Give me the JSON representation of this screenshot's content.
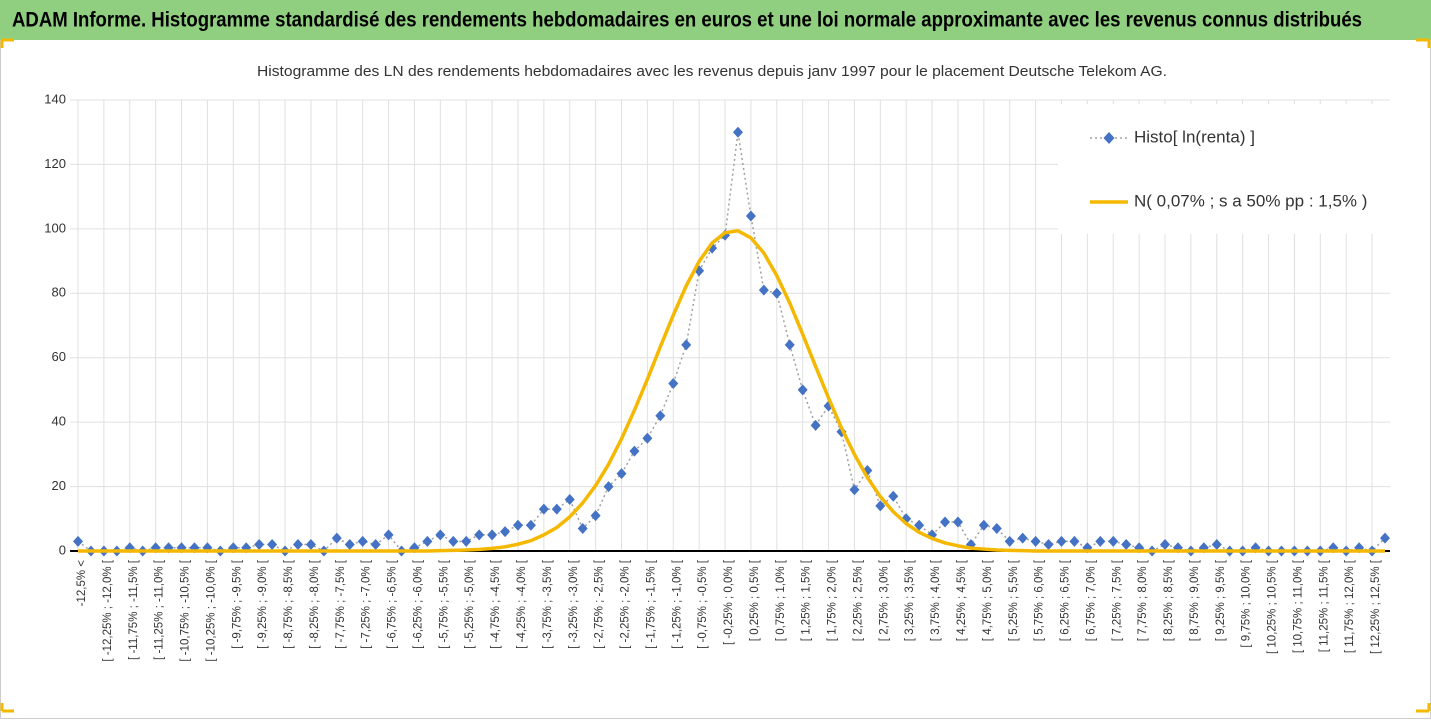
{
  "header": {
    "title": "ADAM Informe. Histogramme standardisé des rendements hebdomadaires en euros et une loi normale approximante avec les revenus connus distribués"
  },
  "chart_data": {
    "type": "line",
    "title": "Histogramme des LN des rendements hebdomadaires avec les revenus depuis janv 1997 pour le placement Deutsche Telekom AG.",
    "categories": [
      "-12,5% <",
      null,
      "[ -12,25% ; -12,0% [",
      null,
      "[ -11,75% ; -11,5% [",
      null,
      "[ -11,25% ; -11,0% [",
      null,
      "[ -10,75% ; -10,5% [",
      null,
      "[ -10,25% ; -10,0% [",
      null,
      "[ -9,75% ; -9,5% [",
      null,
      "[ -9,25% ; -9,0% [",
      null,
      "[ -8,75% ; -8,5% [",
      null,
      "[ -8,25% ; -8,0% [",
      null,
      "[ -7,75% ; -7,5% [",
      null,
      "[ -7,25% ; -7,0% [",
      null,
      "[ -6,75% ; -6,5% [",
      null,
      "[ -6,25% ; -6,0% [",
      null,
      "[ -5,75% ; -5,5% [",
      null,
      "[ -5,25% ; -5,0% [",
      null,
      "[ -4,75% ; -4,5% [",
      null,
      "[ -4,25% ; -4,0% [",
      null,
      "[ -3,75% ; -3,5% [",
      null,
      "[ -3,25% ; -3,0% [",
      null,
      "[ -2,75% ; -2,5% [",
      null,
      "[ -2,25% ; -2,0% [",
      null,
      "[ -1,75% ; -1,5% [",
      null,
      "[ -1,25% ; -1,0% [",
      null,
      "[ -0,75% ; -0,5% [",
      null,
      "[ -0,25% ; 0,0% [",
      null,
      "[ 0,25% ; 0,5% [",
      null,
      "[ 0,75% ; 1,0% [",
      null,
      "[ 1,25% ; 1,5% [",
      null,
      "[ 1,75% ; 2,0% [",
      null,
      "[ 2,25% ; 2,5% [",
      null,
      "[ 2,75% ; 3,0% [",
      null,
      "[ 3,25% ; 3,5% [",
      null,
      "[ 3,75% ; 4,0% [",
      null,
      "[ 4,25% ; 4,5% [",
      null,
      "[ 4,75% ; 5,0% [",
      null,
      "[ 5,25% ; 5,5% [",
      null,
      "[ 5,75% ; 6,0% [",
      null,
      "[ 6,25% ; 6,5% [",
      null,
      "[ 6,75% ; 7,0% [",
      null,
      "[ 7,25% ; 7,5% [",
      null,
      "[ 7,75% ; 8,0% [",
      null,
      "[ 8,25% ; 8,5% [",
      null,
      "[ 8,75% ; 9,0% [",
      null,
      "[ 9,25% ; 9,5% [",
      null,
      "[ 9,75% ; 10,0% [",
      null,
      "[ 10,25% ; 10,5% [",
      null,
      "[ 10,75% ; 11,0% [",
      null,
      "[ 11,25% ; 11,5% [",
      null,
      "[ 11,75% ; 12,0% [",
      null,
      "[ 12,25% ; 12,5% [",
      null
    ],
    "series": [
      {
        "name": "Histo[ ln(renta) ]",
        "color": "#4472c4",
        "values": [
          3,
          0,
          0,
          0,
          1,
          0,
          1,
          1,
          1,
          1,
          1,
          0,
          1,
          1,
          2,
          2,
          0,
          2,
          2,
          0,
          4,
          2,
          3,
          2,
          5,
          0,
          1,
          3,
          5,
          3,
          3,
          5,
          5,
          6,
          8,
          8,
          13,
          13,
          16,
          7,
          11,
          20,
          24,
          31,
          35,
          42,
          52,
          64,
          87,
          94,
          98,
          130,
          104,
          81,
          80,
          64,
          50,
          39,
          45,
          37,
          19,
          25,
          14,
          17,
          10,
          8,
          5,
          9,
          9,
          2,
          8,
          7,
          3,
          4,
          3,
          2,
          3,
          3,
          1,
          3,
          3,
          2,
          1,
          0,
          2,
          1,
          0,
          1,
          2,
          0,
          0,
          1,
          0,
          0,
          0,
          0,
          0,
          1,
          0,
          1,
          0,
          4
        ]
      },
      {
        "name": "N( 0,07% ; s a 50% pp : 1,5% )",
        "color": "#f5b800",
        "values": [
          0,
          0,
          0,
          0,
          0,
          0,
          0,
          0,
          0,
          0,
          0,
          0,
          0,
          0,
          0,
          0,
          0,
          0,
          0,
          0,
          0,
          0,
          0,
          0,
          0,
          0,
          0,
          0,
          0.1,
          0.2,
          0.3,
          0.5,
          0.8,
          1.3,
          2.1,
          3.2,
          5.0,
          7.3,
          10.6,
          14.9,
          20.3,
          26.9,
          34.8,
          43.7,
          53.3,
          63.4,
          73.2,
          82.3,
          89.9,
          95.6,
          98.8,
          99.4,
          97.2,
          92.5,
          85.5,
          77.0,
          67.3,
          57.3,
          47.5,
          38.2,
          30.0,
          22.8,
          16.9,
          12.2,
          8.5,
          5.8,
          3.9,
          2.5,
          1.6,
          0.9,
          0.6,
          0.3,
          0.2,
          0.1,
          0,
          0,
          0,
          0,
          0,
          0,
          0,
          0,
          0,
          0,
          0,
          0,
          0,
          0,
          0,
          0,
          0,
          0,
          0,
          0,
          0,
          0,
          0,
          0,
          0,
          0,
          0,
          0
        ]
      }
    ],
    "ylim": [
      0,
      140
    ],
    "yticks": [
      0,
      20,
      40,
      60,
      80,
      100,
      120,
      140
    ],
    "grid": true,
    "legend": "top-right"
  }
}
